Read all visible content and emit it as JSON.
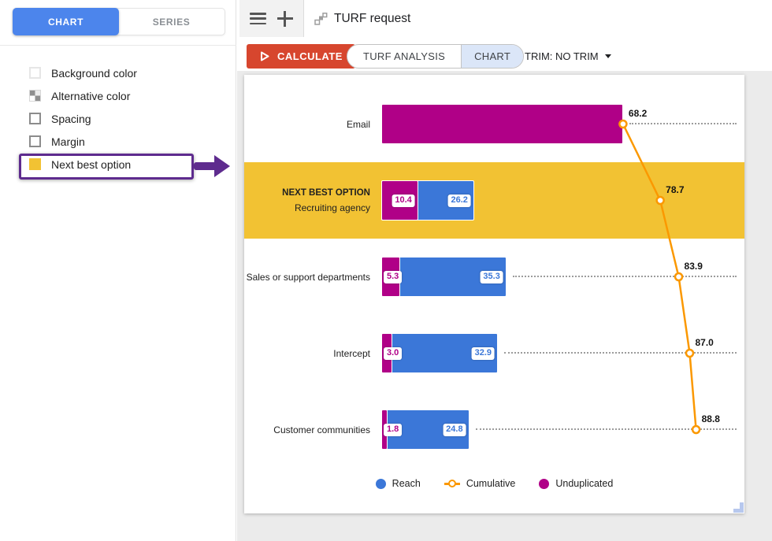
{
  "header": {
    "title": "TURF request"
  },
  "sidebar": {
    "tabs": [
      {
        "label": "CHART",
        "active": true
      },
      {
        "label": "SERIES",
        "active": false
      }
    ],
    "options": [
      {
        "label": "Background color",
        "checked": false
      },
      {
        "label": "Alternative color",
        "checked": false
      },
      {
        "label": "Spacing",
        "checked": false
      },
      {
        "label": "Margin",
        "checked": false
      },
      {
        "label": "Next best option",
        "checked": true,
        "annotated": true
      }
    ]
  },
  "toolbar": {
    "calculate_label": "CALCULATE",
    "tabs": [
      {
        "label": "TURF ANALYSIS",
        "active": false
      },
      {
        "label": "CHART",
        "active": true
      }
    ],
    "trim_label": "TRIM: NO TRIM"
  },
  "icons": {
    "menu": "hamburger-icon",
    "add": "plus-icon",
    "request": "steps-icon",
    "calculate": "play-icon",
    "trim": "caret-down-icon"
  },
  "ui_colors": {
    "active_blue": "#4c85ec",
    "calculate_red": "#d7462e",
    "chart_tab_bg": "#dbe6f8",
    "annotation_purple": "#5e2b8e",
    "content_gray": "#ebebeb"
  },
  "chart_data": {
    "type": "bar",
    "orientation": "horizontal",
    "axes_visible": false,
    "xlim_estimate": [
      0,
      100
    ],
    "grid": false,
    "legend_position": "bottom",
    "highlight_prefix": "NEXT BEST OPTION",
    "highlight_color": "#f2c233",
    "series_colors": {
      "reach": "#3b77d8",
      "cumulative": "#fb9800",
      "unduplicated": "#b00087"
    },
    "rows": [
      {
        "label": "Email",
        "reach": null,
        "unduplicated": 68.2,
        "cumulative": 68.2,
        "show_bar_labels": false,
        "highlighted": false
      },
      {
        "label": "Recruiting agency",
        "reach": 26.2,
        "unduplicated": 10.4,
        "cumulative": 78.7,
        "highlighted": true
      },
      {
        "label": "Sales or support departments",
        "reach": 35.3,
        "unduplicated": 5.3,
        "cumulative": 83.9,
        "highlighted": false
      },
      {
        "label": "Intercept",
        "reach": 32.9,
        "unduplicated": 3.0,
        "cumulative": 87.0,
        "highlighted": false
      },
      {
        "label": "Customer communities",
        "reach": 24.8,
        "unduplicated": 1.8,
        "cumulative": 88.8,
        "highlighted": false
      }
    ],
    "legend": [
      {
        "label": "Reach",
        "type": "dot",
        "series": "reach"
      },
      {
        "label": "Cumulative",
        "type": "line-marker",
        "series": "cumulative"
      },
      {
        "label": "Unduplicated",
        "type": "dot",
        "series": "unduplicated"
      }
    ]
  }
}
